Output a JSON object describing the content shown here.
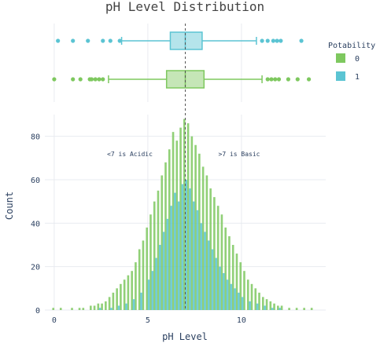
{
  "colors": {
    "potable_0": "#7ec85f",
    "potable_1": "#5bc4d3",
    "grid": "#e8ebf0",
    "median_line": "#555555"
  },
  "chart_data": {
    "type": "histogram",
    "title": "pH Level Distribution",
    "xlabel": "pH Level",
    "ylabel": "Count",
    "xlim": [
      -0.5,
      14.5
    ],
    "ylim": [
      0,
      90
    ],
    "x_ticks": [
      0,
      5,
      10
    ],
    "y_ticks": [
      0,
      20,
      40,
      60,
      80
    ],
    "annotations": [
      {
        "text": "<7 is Acidic",
        "x": 4.2,
        "y": 71
      },
      {
        "text": ">7 is Basic",
        "x": 10.0,
        "y": 71
      }
    ],
    "reference_line": {
      "x": 7.0
    },
    "legend": {
      "title": "Potability",
      "entries": [
        "0",
        "1"
      ],
      "position": "right"
    },
    "bin_width": 0.2,
    "series": [
      {
        "name": "0",
        "x": [
          0.0,
          0.4,
          1.0,
          1.4,
          1.6,
          2.0,
          2.2,
          2.4,
          2.6,
          2.8,
          3.0,
          3.2,
          3.4,
          3.6,
          3.8,
          4.0,
          4.2,
          4.4,
          4.6,
          4.8,
          5.0,
          5.2,
          5.4,
          5.6,
          5.8,
          6.0,
          6.2,
          6.4,
          6.6,
          6.8,
          7.0,
          7.2,
          7.4,
          7.6,
          7.8,
          8.0,
          8.2,
          8.4,
          8.6,
          8.8,
          9.0,
          9.2,
          9.4,
          9.6,
          9.8,
          10.0,
          10.2,
          10.4,
          10.6,
          10.8,
          11.0,
          11.2,
          11.4,
          11.6,
          11.8,
          12.0,
          12.2,
          12.6,
          13.0,
          13.4,
          13.8
        ],
        "values": [
          1,
          1,
          1,
          1,
          1,
          2,
          2,
          3,
          3,
          4,
          6,
          8,
          10,
          12,
          14,
          16,
          18,
          22,
          28,
          32,
          38,
          44,
          50,
          55,
          62,
          68,
          74,
          82,
          78,
          84,
          88,
          86,
          80,
          76,
          72,
          66,
          62,
          56,
          52,
          48,
          44,
          38,
          34,
          30,
          26,
          22,
          18,
          14,
          12,
          10,
          8,
          6,
          5,
          4,
          3,
          2,
          2,
          1,
          1,
          1,
          1
        ]
      },
      {
        "name": "1",
        "x": [
          2.4,
          3.0,
          3.4,
          3.8,
          4.2,
          4.6,
          5.0,
          5.2,
          5.4,
          5.6,
          5.8,
          6.0,
          6.2,
          6.4,
          6.6,
          6.8,
          7.0,
          7.2,
          7.4,
          7.6,
          7.8,
          8.0,
          8.2,
          8.4,
          8.6,
          8.8,
          9.0,
          9.2,
          9.4,
          9.6,
          9.8,
          10.0,
          10.4,
          10.8,
          11.2,
          11.6,
          12.0
        ],
        "values": [
          1,
          1,
          2,
          3,
          5,
          8,
          14,
          18,
          24,
          30,
          36,
          42,
          48,
          54,
          50,
          58,
          60,
          56,
          50,
          46,
          40,
          36,
          32,
          28,
          24,
          20,
          17,
          14,
          12,
          10,
          8,
          6,
          4,
          3,
          2,
          1,
          1
        ]
      }
    ],
    "box_plots": [
      {
        "name": "1",
        "min": 3.6,
        "q1": 6.2,
        "median": 7.0,
        "q3": 7.9,
        "max": 10.8,
        "outliers_low": [
          0.2,
          1.0,
          1.8,
          2.6,
          3.0,
          3.5
        ],
        "outliers_high": [
          11.1,
          11.4,
          11.7,
          11.9,
          12.1,
          13.2
        ]
      },
      {
        "name": "0",
        "min": 2.9,
        "q1": 6.0,
        "median": 7.0,
        "q3": 8.0,
        "max": 11.1,
        "outliers_low": [
          0.0,
          1.0,
          1.4,
          1.9,
          2.0,
          2.2,
          2.4,
          2.6
        ],
        "outliers_high": [
          11.4,
          11.6,
          11.8,
          12.0,
          12.5,
          13.0,
          13.6
        ]
      }
    ]
  }
}
